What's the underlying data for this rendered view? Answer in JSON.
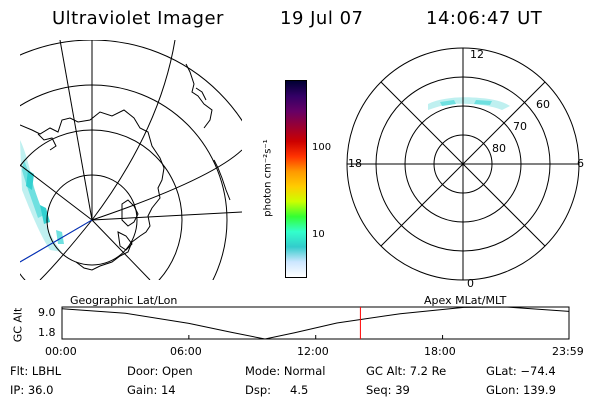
{
  "header": {
    "instrument": "Ultraviolet Imager",
    "date": "19 Jul 07",
    "time": "14:06:47 UT"
  },
  "colorbar": {
    "unit_label": "photon cm⁻²s⁻¹",
    "ticks": [
      "100",
      "10"
    ],
    "scale": "log",
    "colors": [
      "#000033",
      "#330066",
      "#660066",
      "#990033",
      "#cc0000",
      "#ff3300",
      "#ff9900",
      "#ffcc00",
      "#ccff00",
      "#33ff33",
      "#33ffcc",
      "#33cccc",
      "#cce6ff",
      "#ffffff"
    ]
  },
  "polar_plot": {
    "mlt_labels": {
      "top": "12",
      "bottom": "0",
      "left": "18",
      "right": "6"
    },
    "lat_labels": [
      "60",
      "70",
      "80"
    ]
  },
  "altitude_plot": {
    "axis_title": "GC Alt",
    "y_ticks": [
      "9.0",
      "1.8"
    ],
    "left_title": "Geographic Lat/Lon",
    "right_title": "Apex MLat/MLT",
    "x_ticks": [
      "00:00",
      "06:00",
      "12:00",
      "18:00",
      "23:59"
    ],
    "curve": {
      "x_hours": [
        0,
        3,
        6,
        8,
        9.6,
        11,
        13,
        16,
        19,
        21,
        23.98
      ],
      "alt_re": [
        8.6,
        7.6,
        5.3,
        3.3,
        1.8,
        3.2,
        5.4,
        7.5,
        8.9,
        9.0,
        8.0
      ]
    },
    "current_hour": 14.113,
    "current_color": "#ff0000"
  },
  "info": {
    "filter": "Flt: LBHL",
    "door": "Door: Open",
    "mode": "Mode: Normal",
    "gc_alt": "GC Alt: 7.2 Re",
    "glat": "GLat: −74.4",
    "ip": "IP: 36.0",
    "gain": "Gain: 14",
    "dsp_label": "Dsp:",
    "dsp_value": "4.5",
    "seq": "Seq: 39",
    "glon": "GLon: 139.9"
  }
}
